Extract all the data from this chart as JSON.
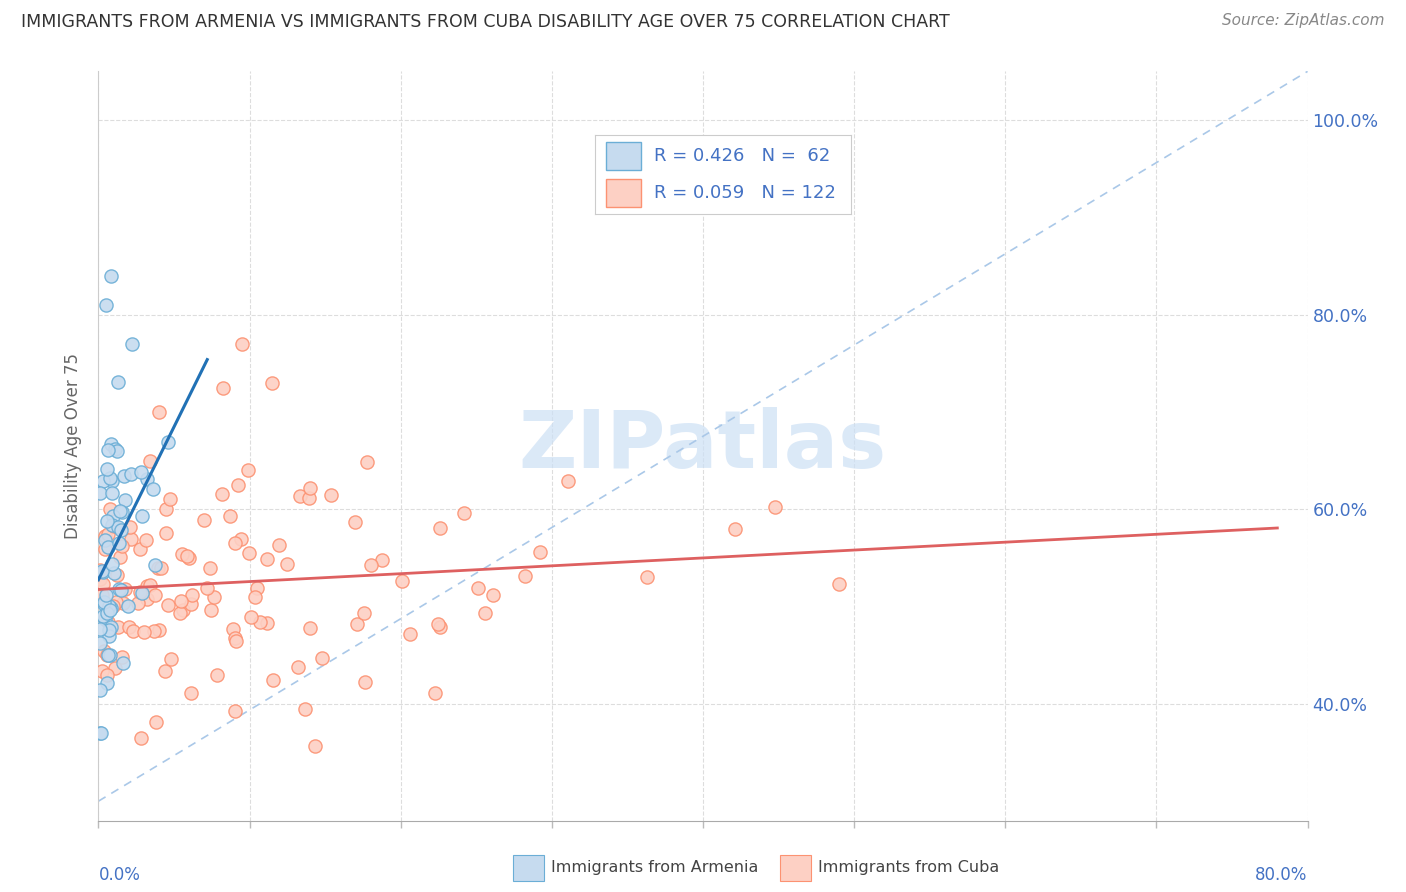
{
  "title": "IMMIGRANTS FROM ARMENIA VS IMMIGRANTS FROM CUBA DISABILITY AGE OVER 75 CORRELATION CHART",
  "source": "Source: ZipAtlas.com",
  "ylabel": "Disability Age Over 75",
  "armenia_color_edge": "#6baed6",
  "armenia_color_fill": "#c6dbef",
  "armenia_line_color": "#2171b5",
  "cuba_color_edge": "#fc9272",
  "cuba_color_fill": "#fdd0c4",
  "cuba_line_color": "#de6060",
  "diag_color": "#aac8e8",
  "watermark_color": "#cce0f5",
  "legend_text_color": "#4472c4",
  "right_axis_color": "#4472c4",
  "xlim": [
    0.0,
    0.8
  ],
  "ylim": [
    0.28,
    1.05
  ],
  "ytick_vals": [
    0.4,
    0.6,
    0.8,
    1.0
  ],
  "ytick_labels": [
    "40.0%",
    "60.0%",
    "80.0%",
    "100.0%"
  ],
  "grid_color": "#dddddd",
  "title_color": "#333333",
  "source_color": "#888888",
  "ylabel_color": "#666666"
}
